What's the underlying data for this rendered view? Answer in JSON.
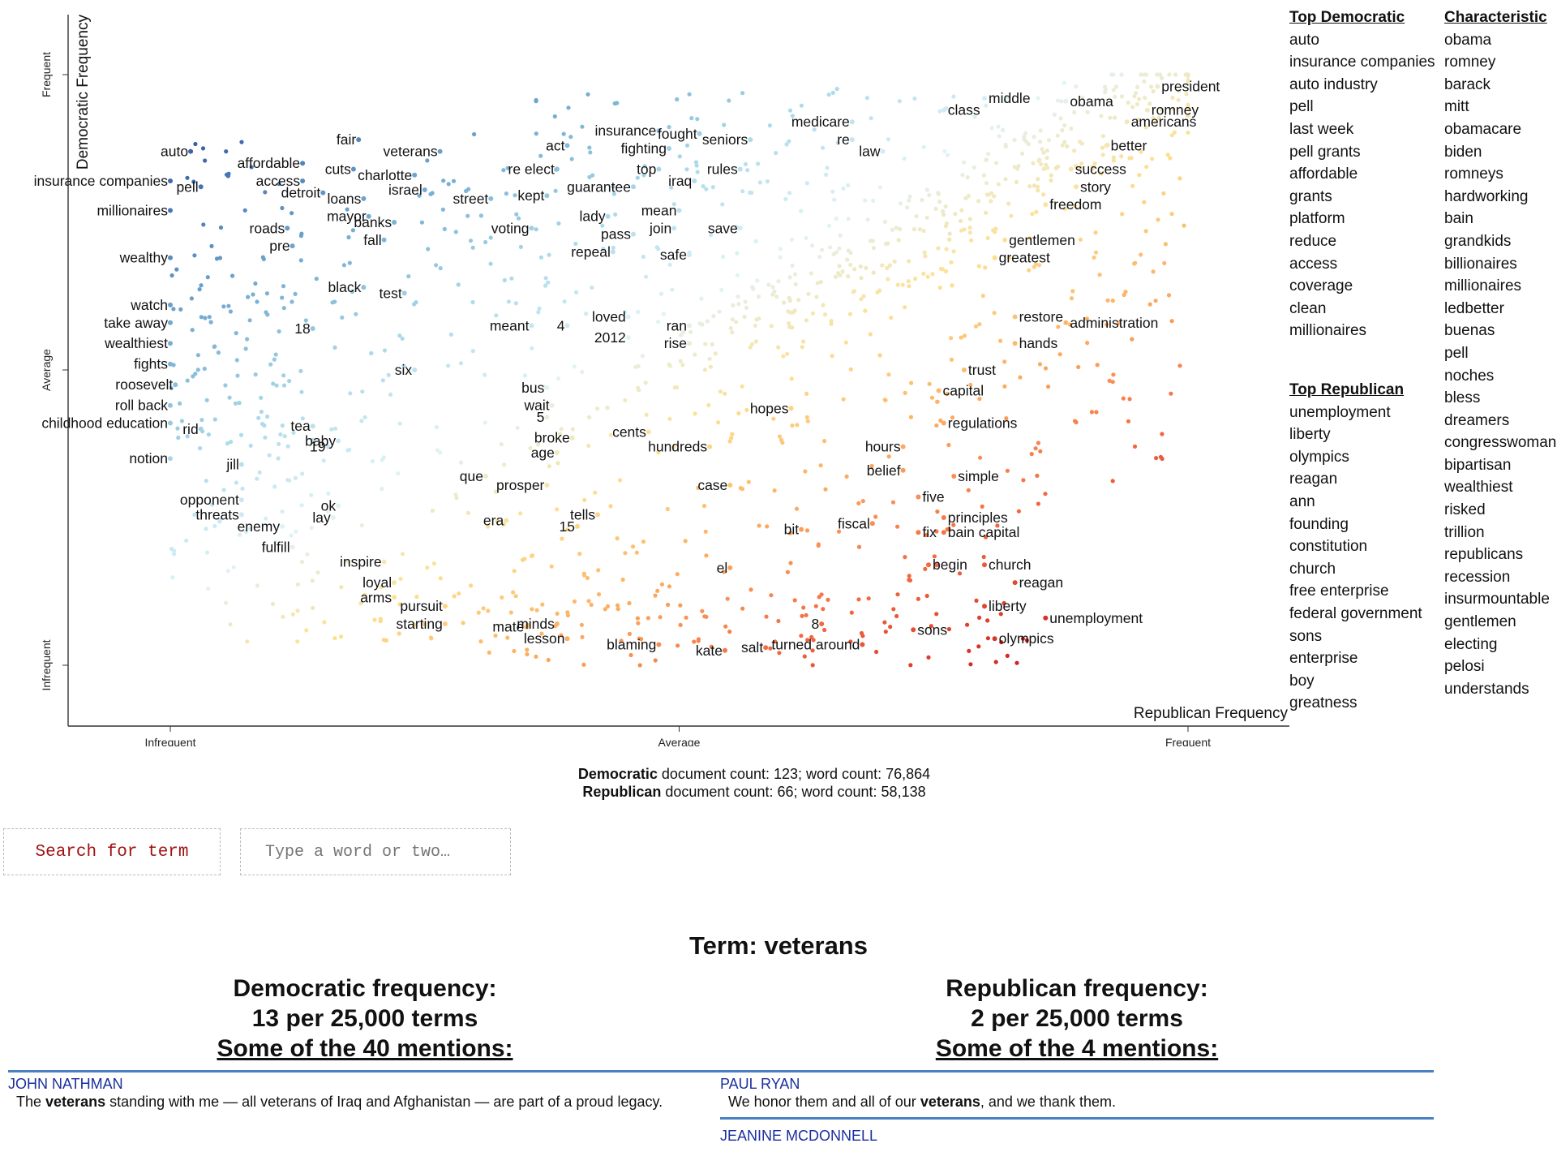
{
  "chart_data": {
    "type": "scatter",
    "xlabel": "Republican Frequency",
    "ylabel": "Democratic Frequency",
    "x_ticks": [
      "Infrequent",
      "Average",
      "Frequent"
    ],
    "y_ticks": [
      "Infrequent",
      "Average",
      "Frequent"
    ],
    "xlim": [
      0,
      1
    ],
    "ylim": [
      0,
      1
    ],
    "color_scale": [
      "#a50026",
      "#d73027",
      "#f46d43",
      "#fdae61",
      "#fee090",
      "#e0f3f8",
      "#abd9e9",
      "#74add1",
      "#4575b4",
      "#313695"
    ],
    "labeled_points": [
      {
        "t": "auto",
        "x": 0.02,
        "y": 0.87
      },
      {
        "t": "insurance companies",
        "x": 0.0,
        "y": 0.82
      },
      {
        "t": "pell",
        "x": 0.03,
        "y": 0.81
      },
      {
        "t": "millionaires",
        "x": 0.0,
        "y": 0.77
      },
      {
        "t": "wealthy",
        "x": 0.0,
        "y": 0.69
      },
      {
        "t": "watch",
        "x": 0.0,
        "y": 0.61
      },
      {
        "t": "take away",
        "x": 0.0,
        "y": 0.58
      },
      {
        "t": "wealthiest",
        "x": 0.0,
        "y": 0.545
      },
      {
        "t": "fights",
        "x": 0.0,
        "y": 0.51
      },
      {
        "t": "roosevelt",
        "x": 0.005,
        "y": 0.475
      },
      {
        "t": "roll back",
        "x": 0.0,
        "y": 0.44
      },
      {
        "t": "childhood education",
        "x": 0.0,
        "y": 0.41
      },
      {
        "t": "rid",
        "x": 0.03,
        "y": 0.4
      },
      {
        "t": "notion",
        "x": 0.0,
        "y": 0.35
      },
      {
        "t": "jill",
        "x": 0.07,
        "y": 0.34
      },
      {
        "t": "opponent",
        "x": 0.07,
        "y": 0.28
      },
      {
        "t": "threats",
        "x": 0.07,
        "y": 0.255
      },
      {
        "t": "enemy",
        "x": 0.11,
        "y": 0.235
      },
      {
        "t": "fulfill",
        "x": 0.12,
        "y": 0.2
      },
      {
        "t": "lay",
        "x": 0.16,
        "y": 0.25
      },
      {
        "t": "ok",
        "x": 0.165,
        "y": 0.27
      },
      {
        "t": "19",
        "x": 0.155,
        "y": 0.37
      },
      {
        "t": "baby",
        "x": 0.165,
        "y": 0.38
      },
      {
        "t": "tea",
        "x": 0.14,
        "y": 0.405
      },
      {
        "t": "18",
        "x": 0.14,
        "y": 0.57
      },
      {
        "t": "six",
        "x": 0.24,
        "y": 0.5
      },
      {
        "t": "black",
        "x": 0.19,
        "y": 0.64
      },
      {
        "t": "test",
        "x": 0.23,
        "y": 0.63
      },
      {
        "t": "affordable",
        "x": 0.13,
        "y": 0.85
      },
      {
        "t": "access",
        "x": 0.13,
        "y": 0.82
      },
      {
        "t": "detroit",
        "x": 0.15,
        "y": 0.8
      },
      {
        "t": "cuts",
        "x": 0.18,
        "y": 0.84
      },
      {
        "t": "fair",
        "x": 0.185,
        "y": 0.89
      },
      {
        "t": "roads",
        "x": 0.115,
        "y": 0.74
      },
      {
        "t": "pre",
        "x": 0.12,
        "y": 0.71
      },
      {
        "t": "loans",
        "x": 0.19,
        "y": 0.79
      },
      {
        "t": "mayor",
        "x": 0.195,
        "y": 0.76
      },
      {
        "t": "banks",
        "x": 0.22,
        "y": 0.75
      },
      {
        "t": "fall",
        "x": 0.21,
        "y": 0.72
      },
      {
        "t": "veterans",
        "x": 0.265,
        "y": 0.87
      },
      {
        "t": "charlotte",
        "x": 0.24,
        "y": 0.83
      },
      {
        "t": "israel",
        "x": 0.25,
        "y": 0.805
      },
      {
        "t": "street",
        "x": 0.315,
        "y": 0.79
      },
      {
        "t": "act",
        "x": 0.39,
        "y": 0.88
      },
      {
        "t": "re elect",
        "x": 0.38,
        "y": 0.84
      },
      {
        "t": "kept",
        "x": 0.37,
        "y": 0.795
      },
      {
        "t": "voting",
        "x": 0.355,
        "y": 0.74
      },
      {
        "t": "meant",
        "x": 0.355,
        "y": 0.575
      },
      {
        "t": "4",
        "x": 0.39,
        "y": 0.575
      },
      {
        "t": "bus",
        "x": 0.37,
        "y": 0.47
      },
      {
        "t": "wait",
        "x": 0.375,
        "y": 0.44
      },
      {
        "t": "5",
        "x": 0.37,
        "y": 0.42
      },
      {
        "t": "broke",
        "x": 0.395,
        "y": 0.385
      },
      {
        "t": "age",
        "x": 0.38,
        "y": 0.36
      },
      {
        "t": "que",
        "x": 0.31,
        "y": 0.32
      },
      {
        "t": "prosper",
        "x": 0.37,
        "y": 0.305
      },
      {
        "t": "era",
        "x": 0.33,
        "y": 0.245
      },
      {
        "t": "15",
        "x": 0.4,
        "y": 0.235
      },
      {
        "t": "tells",
        "x": 0.42,
        "y": 0.255
      },
      {
        "t": "inspire",
        "x": 0.21,
        "y": 0.175
      },
      {
        "t": "loyal",
        "x": 0.22,
        "y": 0.14
      },
      {
        "t": "arms",
        "x": 0.22,
        "y": 0.115
      },
      {
        "t": "pursuit",
        "x": 0.27,
        "y": 0.1
      },
      {
        "t": "starting",
        "x": 0.27,
        "y": 0.07
      },
      {
        "t": "mate",
        "x": 0.35,
        "y": 0.065
      },
      {
        "t": "minds",
        "x": 0.38,
        "y": 0.07
      },
      {
        "t": "lesson",
        "x": 0.39,
        "y": 0.045
      },
      {
        "t": "blaming",
        "x": 0.48,
        "y": 0.035
      },
      {
        "t": "kate",
        "x": 0.545,
        "y": 0.025
      },
      {
        "t": "salt",
        "x": 0.585,
        "y": 0.03
      },
      {
        "t": "8",
        "x": 0.64,
        "y": 0.07
      },
      {
        "t": "turned around",
        "x": 0.68,
        "y": 0.035
      },
      {
        "t": "sons",
        "x": 0.73,
        "y": 0.06
      },
      {
        "t": "olympics",
        "x": 0.81,
        "y": 0.045
      },
      {
        "t": "unemployment",
        "x": 0.86,
        "y": 0.08
      },
      {
        "t": "liberty",
        "x": 0.8,
        "y": 0.1
      },
      {
        "t": "reagan",
        "x": 0.83,
        "y": 0.14
      },
      {
        "t": "church",
        "x": 0.8,
        "y": 0.17
      },
      {
        "t": "begin",
        "x": 0.745,
        "y": 0.17
      },
      {
        "t": "bain capital",
        "x": 0.76,
        "y": 0.225
      },
      {
        "t": "principles",
        "x": 0.76,
        "y": 0.25
      },
      {
        "t": "fix",
        "x": 0.735,
        "y": 0.225
      },
      {
        "t": "five",
        "x": 0.735,
        "y": 0.285
      },
      {
        "t": "simple",
        "x": 0.77,
        "y": 0.32
      },
      {
        "t": "belief",
        "x": 0.72,
        "y": 0.33
      },
      {
        "t": "hours",
        "x": 0.72,
        "y": 0.37
      },
      {
        "t": "regulations",
        "x": 0.76,
        "y": 0.41
      },
      {
        "t": "capital",
        "x": 0.755,
        "y": 0.465
      },
      {
        "t": "trust",
        "x": 0.78,
        "y": 0.5
      },
      {
        "t": "hands",
        "x": 0.83,
        "y": 0.545
      },
      {
        "t": "administration",
        "x": 0.88,
        "y": 0.58
      },
      {
        "t": "restore",
        "x": 0.83,
        "y": 0.59
      },
      {
        "t": "greatest",
        "x": 0.81,
        "y": 0.69
      },
      {
        "t": "gentlemen",
        "x": 0.82,
        "y": 0.72
      },
      {
        "t": "freedom",
        "x": 0.86,
        "y": 0.78
      },
      {
        "t": "story",
        "x": 0.89,
        "y": 0.81
      },
      {
        "t": "success",
        "x": 0.885,
        "y": 0.84
      },
      {
        "t": "better",
        "x": 0.92,
        "y": 0.88
      },
      {
        "t": "americans",
        "x": 0.94,
        "y": 0.92
      },
      {
        "t": "romney",
        "x": 0.96,
        "y": 0.94
      },
      {
        "t": "president",
        "x": 0.97,
        "y": 0.98
      },
      {
        "t": "obama",
        "x": 0.88,
        "y": 0.955
      },
      {
        "t": "middle",
        "x": 0.8,
        "y": 0.96
      },
      {
        "t": "class",
        "x": 0.76,
        "y": 0.94
      },
      {
        "t": "medicare",
        "x": 0.67,
        "y": 0.92
      },
      {
        "t": "re",
        "x": 0.67,
        "y": 0.89
      },
      {
        "t": "law",
        "x": 0.7,
        "y": 0.87
      },
      {
        "t": "seniors",
        "x": 0.57,
        "y": 0.89
      },
      {
        "t": "rules",
        "x": 0.56,
        "y": 0.84
      },
      {
        "t": "insurance",
        "x": 0.48,
        "y": 0.905
      },
      {
        "t": "fought",
        "x": 0.52,
        "y": 0.9
      },
      {
        "t": "fighting",
        "x": 0.49,
        "y": 0.875
      },
      {
        "t": "top",
        "x": 0.48,
        "y": 0.84
      },
      {
        "t": "iraq",
        "x": 0.515,
        "y": 0.82
      },
      {
        "t": "guarantee",
        "x": 0.455,
        "y": 0.81
      },
      {
        "t": "mean",
        "x": 0.5,
        "y": 0.77
      },
      {
        "t": "lady",
        "x": 0.43,
        "y": 0.76
      },
      {
        "t": "join",
        "x": 0.495,
        "y": 0.74
      },
      {
        "t": "save",
        "x": 0.56,
        "y": 0.74
      },
      {
        "t": "pass",
        "x": 0.455,
        "y": 0.73
      },
      {
        "t": "repeal",
        "x": 0.435,
        "y": 0.7
      },
      {
        "t": "safe",
        "x": 0.51,
        "y": 0.695
      },
      {
        "t": "loved",
        "x": 0.45,
        "y": 0.59
      },
      {
        "t": "2012",
        "x": 0.45,
        "y": 0.555
      },
      {
        "t": "ran",
        "x": 0.51,
        "y": 0.575
      },
      {
        "t": "rise",
        "x": 0.51,
        "y": 0.545
      },
      {
        "t": "cents",
        "x": 0.47,
        "y": 0.395
      },
      {
        "t": "hundreds",
        "x": 0.53,
        "y": 0.37
      },
      {
        "t": "hopes",
        "x": 0.61,
        "y": 0.435
      },
      {
        "t": "case",
        "x": 0.55,
        "y": 0.305
      },
      {
        "t": "el",
        "x": 0.55,
        "y": 0.165
      },
      {
        "t": "bit",
        "x": 0.62,
        "y": 0.23
      },
      {
        "t": "fiscal",
        "x": 0.69,
        "y": 0.24
      }
    ]
  },
  "top_democratic": {
    "heading": "Top Democratic",
    "items": [
      "auto",
      "insurance companies",
      "auto industry",
      "pell",
      "last week",
      "pell grants",
      "affordable",
      "grants",
      "platform",
      "reduce",
      "access",
      "coverage",
      "clean",
      "millionaires"
    ]
  },
  "top_republican": {
    "heading": "Top Republican",
    "items": [
      "unemployment",
      "liberty",
      "olympics",
      "reagan",
      "ann",
      "founding",
      "constitution",
      "church",
      "free enterprise",
      "federal government",
      "sons",
      "enterprise",
      "boy",
      "greatness"
    ]
  },
  "characteristic": {
    "heading": "Characteristic",
    "items": [
      "obama",
      "romney",
      "barack",
      "mitt",
      "obamacare",
      "biden",
      "romneys",
      "hardworking",
      "bain",
      "grandkids",
      "billionaires",
      "millionaires",
      "ledbetter",
      "buenas",
      "pell",
      "noches",
      "bless",
      "dreamers",
      "congresswoman",
      "bipartisan",
      "wealthiest",
      "risked",
      "trillion",
      "republicans",
      "recession",
      "insurmountable",
      "gentlemen",
      "electing",
      "pelosi",
      "understands"
    ]
  },
  "counts": {
    "dem_party": "Democratic",
    "dem_rest": " document count: 123; word count: 76,864",
    "rep_party": "Republican",
    "rep_rest": " document count: 66; word count: 58,138"
  },
  "search": {
    "button_label": "Search for term",
    "placeholder": "Type a word or two…"
  },
  "term": {
    "title": "Term: veterans",
    "dem_heading": "Democratic frequency:",
    "dem_rate": "13 per 25,000 terms",
    "dem_mentions": "Some of the 40 mentions:",
    "rep_heading": "Republican frequency:",
    "rep_rate": "2 per 25,000 terms",
    "rep_mentions": "Some of the 4 mentions:",
    "dem_snippets": [
      {
        "speaker": "JOHN NATHMAN",
        "before": "The ",
        "term": "veterans",
        "after": " standing with me — all veterans of Iraq and Afghanistan — are part of a proud legacy."
      }
    ],
    "rep_snippets": [
      {
        "speaker": "PAUL RYAN",
        "before": "We honor them and all of our ",
        "term": "veterans",
        "after": ", and we thank them."
      },
      {
        "speaker": "JEANINE MCDONNELL",
        "before": "",
        "term": "",
        "after": ""
      }
    ]
  }
}
